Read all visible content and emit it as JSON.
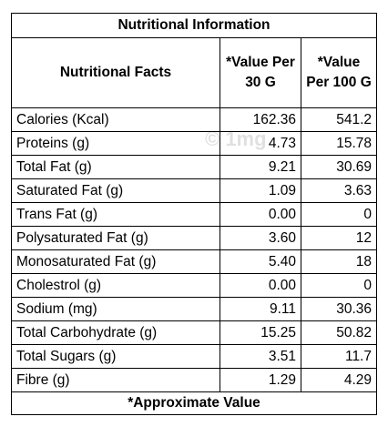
{
  "title": "Nutritional Information",
  "header": [
    "Nutritional Facts",
    "*Value Per 30 G",
    "*Value Per 100 G"
  ],
  "rows": [
    [
      "Calories (Kcal)",
      "162.36",
      "541.2"
    ],
    [
      "Proteins (g)",
      "4.73",
      "15.78"
    ],
    [
      "Total Fat (g)",
      "9.21",
      "30.69"
    ],
    [
      "Saturated Fat (g)",
      "1.09",
      "3.63"
    ],
    [
      "Trans Fat (g)",
      "0.00",
      "0"
    ],
    [
      "Polysaturated Fat (g)",
      "3.60",
      "12"
    ],
    [
      "Monosaturated Fat (g)",
      "5.40",
      "18"
    ],
    [
      "Cholestrol (g)",
      "0.00",
      "0"
    ],
    [
      "Sodium  (mg)",
      "9.11",
      "30.36"
    ],
    [
      "Total Carbohydrate (g)",
      "15.25",
      "50.82"
    ],
    [
      "Total Sugars (g)",
      "3.51",
      "11.7"
    ],
    [
      "Fibre (g)",
      "1.29",
      "4.29"
    ]
  ],
  "footer": "*Approximate Value",
  "watermark": "© 1mg"
}
